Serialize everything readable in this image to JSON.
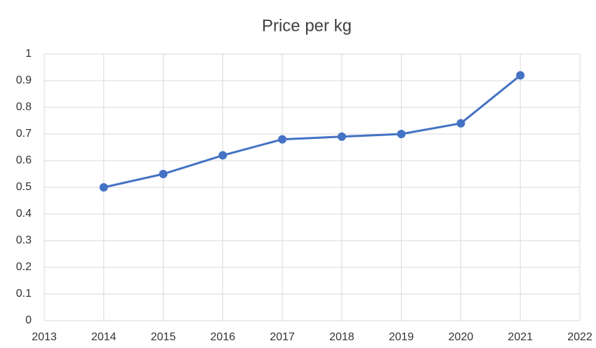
{
  "chart_data": {
    "type": "line",
    "title": "Price per kg",
    "x": [
      2014,
      2015,
      2016,
      2017,
      2018,
      2019,
      2020,
      2021
    ],
    "values": [
      0.5,
      0.55,
      0.62,
      0.68,
      0.69,
      0.7,
      0.74,
      0.92
    ],
    "color": "#4472c4",
    "xlim": [
      2013,
      2022
    ],
    "xticks": [
      2013,
      2014,
      2015,
      2016,
      2017,
      2018,
      2019,
      2020,
      2021,
      2022
    ],
    "ylim": [
      0,
      1
    ],
    "yticks": [
      0,
      0.1,
      0.2,
      0.3,
      0.4,
      0.5,
      0.6,
      0.7,
      0.8,
      0.9,
      1
    ],
    "grid": true
  }
}
